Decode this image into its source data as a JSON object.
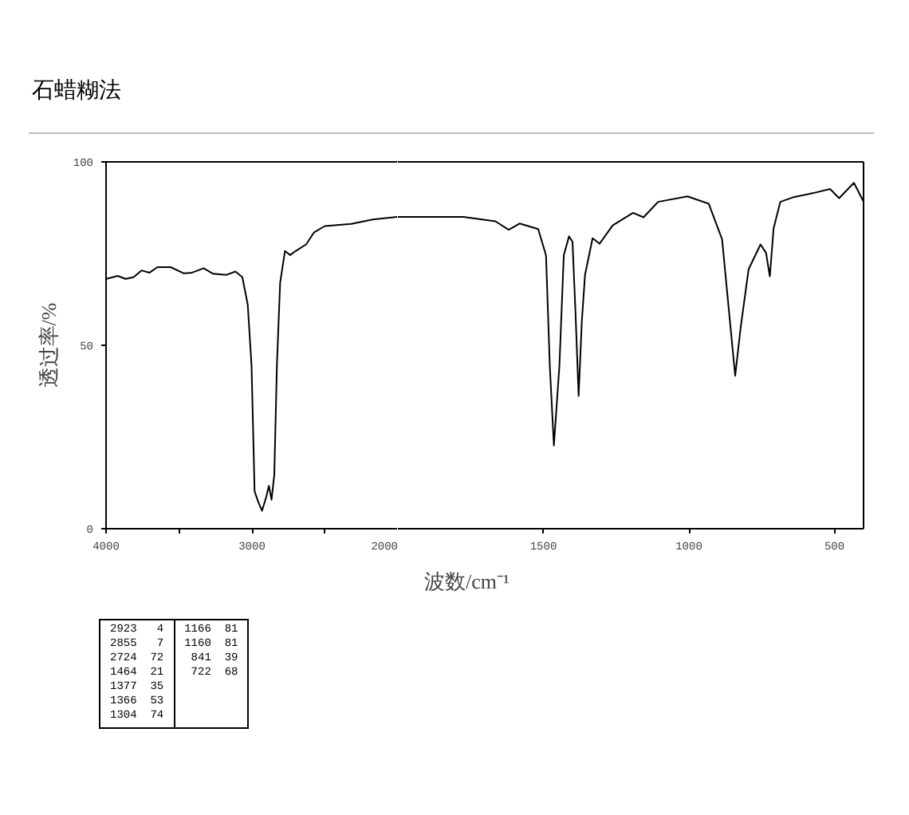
{
  "chart_data": [
    {
      "type": "line",
      "title": "石蜡糊法",
      "ylabel": "透过率/%",
      "xlim": [
        4000,
        2000
      ],
      "ylim": [
        0,
        100
      ],
      "xticks": [
        4000,
        {
          "value": 3500,
          "label": null
        },
        3000,
        {
          "value": 2500,
          "label": null
        },
        2000
      ],
      "yticks": [
        0,
        50,
        100
      ],
      "grid": false,
      "series": [
        {
          "color": "#000000",
          "x": [
            4000,
            3920,
            3866,
            3811,
            3757,
            3702,
            3648,
            3557,
            3466,
            3411,
            3331,
            3266,
            3175,
            3113,
            3066,
            3029,
            3003,
            2982,
            2956,
            2931,
            2902,
            2884,
            2866,
            2847,
            2829,
            2807,
            2774,
            2738,
            2701,
            2629,
            2574,
            2501,
            2319,
            2173,
            2000
          ],
          "values": [
            68.1,
            68.9,
            68.1,
            68.6,
            70.4,
            69.8,
            71.3,
            71.3,
            69.6,
            69.8,
            71.0,
            69.5,
            69.2,
            70.1,
            68.6,
            61.1,
            44.6,
            10.2,
            7.2,
            4.9,
            8.7,
            11.7,
            7.9,
            14.7,
            44.6,
            67,
            75.7,
            74.6,
            75.7,
            77.5,
            80.8,
            82.5,
            83.1,
            84.3,
            85.0
          ]
        }
      ],
      "annotations": [
        "2923   4",
        "2855   7",
        "2724  72",
        "1464  21",
        "1377  35",
        "1366  53",
        "1304  74",
        "1166  81",
        "1160  81",
        " 841  39",
        " 722  68"
      ]
    },
    {
      "type": "line",
      "xlabel": "波数/cm⁻¹",
      "xlim": [
        2000,
        400
      ],
      "ylim": [
        0,
        100
      ],
      "yticks": [
        0,
        50,
        100
      ],
      "tick_labels": "x",
      "xticks": [
        1500,
        1000,
        500
      ],
      "series": [
        {
          "color": "#000000",
          "x": [
            2000,
            1976,
            1830,
            1775,
            1665,
            1619,
            1582,
            1518,
            1491,
            1478,
            1464,
            1445,
            1430,
            1412,
            1400,
            1390,
            1379,
            1368,
            1357,
            1331,
            1307,
            1262,
            1192,
            1156,
            1106,
            1005,
            932,
            886,
            859,
            841,
            822,
            795,
            754,
            735,
            722,
            709,
            686,
            640,
            567,
            515,
            484,
            433,
            401
          ],
          "values": [
            85.0,
            85.0,
            85.0,
            85.0,
            83.8,
            81.5,
            83.2,
            81.7,
            74.5,
            44.4,
            22.7,
            44.4,
            74.5,
            79.7,
            78.2,
            59.5,
            36.2,
            56.5,
            69.2,
            79.2,
            77.7,
            82.7,
            86.1,
            84.9,
            89.1,
            90.6,
            88.6,
            78.9,
            56.5,
            41.7,
            55.0,
            70.7,
            77.5,
            75.2,
            68.8,
            81.9,
            89.1,
            90.4,
            91.6,
            92.6,
            90.1,
            94.3,
            89.3
          ]
        }
      ]
    }
  ]
}
